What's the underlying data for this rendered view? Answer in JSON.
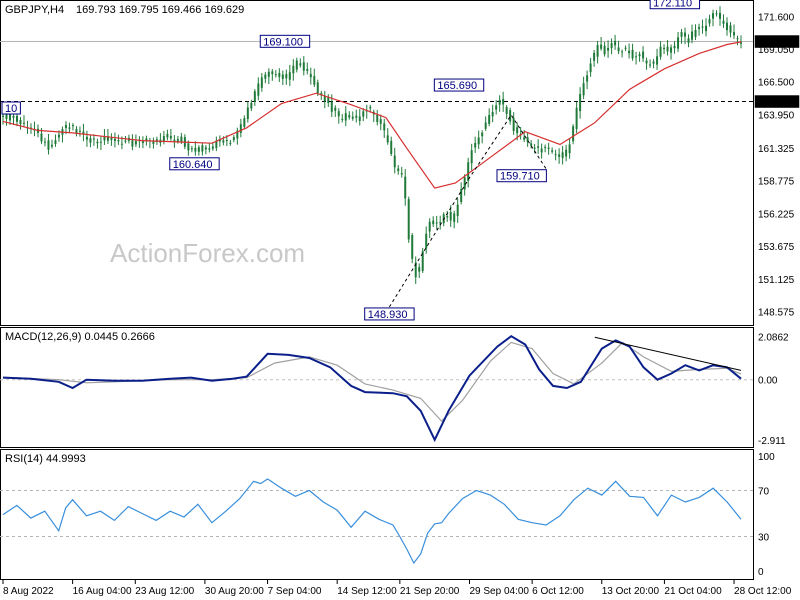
{
  "chart_data": [
    {
      "type": "candlestick",
      "panel": "price",
      "symbol_label": "GBPJPY,H4",
      "ohlc_label": "169.793 169.795 169.466 169.629",
      "ylim": [
        147.6,
        172.4
      ],
      "y_ticks": [
        "171.600",
        "169.050",
        "166.500",
        "163.950",
        "161.325",
        "158.775",
        "156.225",
        "153.675",
        "151.125",
        "148.575"
      ],
      "tick_values": [
        171.6,
        169.05,
        166.5,
        163.95,
        161.325,
        158.775,
        156.225,
        153.675,
        151.125,
        148.575
      ],
      "current_price": 169.629,
      "current_price_label": "169.629",
      "support_level": 164.95,
      "support_label": "164.950",
      "annotations": [
        {
          "text": "172.110",
          "x": 96.5,
          "y": 172.11
        },
        {
          "text": "169.100",
          "x": 40.5,
          "y": 169.1
        },
        {
          "text": "165.690",
          "x": 65.5,
          "y": 165.69
        },
        {
          "text": "160.640",
          "x": 27.5,
          "y": 160.64
        },
        {
          "text": "159.710",
          "x": 74.5,
          "y": 159.71
        },
        {
          "text": "148.930",
          "x": 55.5,
          "y": 148.93
        },
        {
          "text": "10",
          "x": 1,
          "y": 163.9
        }
      ],
      "x_ticks": [
        {
          "x": 0,
          "label": "8 Aug 2022"
        },
        {
          "x": 10,
          "label": "16 Aug 04:00"
        },
        {
          "x": 19,
          "label": "23 Aug 12:00"
        },
        {
          "x": 29,
          "label": "30 Aug 20:00"
        },
        {
          "x": 38,
          "label": "7 Sep 04:00"
        },
        {
          "x": 48,
          "label": "14 Sep 12:00"
        },
        {
          "x": 57,
          "label": "21 Sep 20:00"
        },
        {
          "x": 67,
          "label": "29 Sep 04:00"
        },
        {
          "x": 76,
          "label": "6 Oct 12:00"
        },
        {
          "x": 86,
          "label": "13 Oct 20:00"
        },
        {
          "x": 95,
          "label": "21 Oct 04:00"
        },
        {
          "x": 105,
          "label": "28 Oct 12:00"
        }
      ],
      "close_path": [
        [
          0,
          164.0
        ],
        [
          1,
          163.7
        ],
        [
          2,
          163.9
        ],
        [
          3,
          163.2
        ],
        [
          4,
          163.0
        ],
        [
          5,
          162.6
        ],
        [
          6,
          162.0
        ],
        [
          7,
          161.4
        ],
        [
          8,
          161.9
        ],
        [
          9,
          162.8
        ],
        [
          10,
          163.0
        ],
        [
          11,
          162.6
        ],
        [
          12,
          162.4
        ],
        [
          13,
          162.0
        ],
        [
          14,
          161.9
        ],
        [
          15,
          162.0
        ],
        [
          16,
          162.0
        ],
        [
          17,
          161.8
        ],
        [
          18,
          161.9
        ],
        [
          19,
          161.6
        ],
        [
          20,
          161.8
        ],
        [
          21,
          161.9
        ],
        [
          22,
          161.7
        ],
        [
          23,
          161.9
        ],
        [
          24,
          162.3
        ],
        [
          25,
          161.9
        ],
        [
          26,
          162.1
        ],
        [
          27,
          161.4
        ],
        [
          28,
          161.0
        ],
        [
          29,
          161.3
        ],
        [
          30,
          161.4
        ],
        [
          31,
          161.6
        ],
        [
          32,
          162.2
        ],
        [
          33,
          161.8
        ],
        [
          34,
          162.4
        ],
        [
          35,
          163.4
        ],
        [
          36,
          164.9
        ],
        [
          37,
          166.0
        ],
        [
          38,
          167.0
        ],
        [
          39,
          167.3
        ],
        [
          40,
          167.0
        ],
        [
          41,
          166.7
        ],
        [
          42,
          167.5
        ],
        [
          43,
          168.2
        ],
        [
          44,
          167.3
        ],
        [
          45,
          166.5
        ],
        [
          46,
          165.5
        ],
        [
          47,
          165.0
        ],
        [
          48,
          164.1
        ],
        [
          49,
          163.6
        ],
        [
          50,
          164.0
        ],
        [
          51,
          163.5
        ],
        [
          52,
          164.1
        ],
        [
          53,
          164.4
        ],
        [
          54,
          163.7
        ],
        [
          55,
          162.8
        ],
        [
          56,
          161.5
        ],
        [
          57,
          159.5
        ],
        [
          58,
          159.0
        ],
        [
          59,
          153.0
        ],
        [
          60,
          151.0
        ],
        [
          61,
          154.0
        ],
        [
          62,
          156.0
        ],
        [
          63,
          155.2
        ],
        [
          64,
          156.4
        ],
        [
          65,
          155.5
        ],
        [
          66,
          157.3
        ],
        [
          67,
          159.4
        ],
        [
          68,
          161.6
        ],
        [
          69,
          162.2
        ],
        [
          70,
          163.6
        ],
        [
          71,
          164.3
        ],
        [
          72,
          165.1
        ],
        [
          73,
          164.0
        ],
        [
          74,
          162.5
        ],
        [
          75,
          162.1
        ],
        [
          76,
          161.7
        ],
        [
          77,
          161.3
        ],
        [
          78,
          161.2
        ],
        [
          79,
          161.0
        ],
        [
          80,
          160.9
        ],
        [
          81,
          160.6
        ],
        [
          82,
          162.0
        ],
        [
          83,
          164.5
        ],
        [
          84,
          166.6
        ],
        [
          85,
          168.2
        ],
        [
          86,
          169.4
        ],
        [
          87,
          168.7
        ],
        [
          88,
          169.7
        ],
        [
          89,
          168.8
        ],
        [
          90,
          169.0
        ],
        [
          91,
          168.4
        ],
        [
          92,
          168.7
        ],
        [
          93,
          168.0
        ],
        [
          94,
          167.7
        ],
        [
          95,
          169.4
        ],
        [
          96,
          168.9
        ],
        [
          97,
          169.3
        ],
        [
          98,
          170.3
        ],
        [
          99,
          169.6
        ],
        [
          100,
          170.8
        ],
        [
          101,
          170.6
        ],
        [
          102,
          171.5
        ],
        [
          103,
          171.8
        ],
        [
          104,
          170.9
        ],
        [
          105,
          170.4
        ],
        [
          106,
          169.6
        ]
      ],
      "ma_path": [
        [
          0,
          163.4
        ],
        [
          5,
          162.7
        ],
        [
          10,
          162.5
        ],
        [
          15,
          162.2
        ],
        [
          20,
          161.9
        ],
        [
          25,
          161.8
        ],
        [
          30,
          161.7
        ],
        [
          35,
          162.9
        ],
        [
          40,
          164.8
        ],
        [
          45,
          165.6
        ],
        [
          50,
          164.7
        ],
        [
          55,
          163.7
        ],
        [
          58,
          161.3
        ],
        [
          62,
          158.2
        ],
        [
          65,
          158.6
        ],
        [
          70,
          160.6
        ],
        [
          75,
          162.6
        ],
        [
          80,
          161.6
        ],
        [
          85,
          163.3
        ],
        [
          90,
          165.9
        ],
        [
          95,
          167.5
        ],
        [
          100,
          168.7
        ],
        [
          104,
          169.4
        ],
        [
          106,
          169.6
        ]
      ],
      "dashed_path": [
        [
          55.5,
          148.93
        ],
        [
          67,
          159.0
        ],
        [
          73,
          163.9
        ],
        [
          78,
          159.7
        ]
      ]
    },
    {
      "type": "line",
      "panel": "macd",
      "indicator_label": "MACD(12,26,9) 0.0445 0.2666",
      "ylim": [
        -3.2,
        2.4
      ],
      "y_ticks": [
        {
          "label": "2.0862",
          "v": 2.0862
        },
        {
          "label": "0.00",
          "v": 0.0
        },
        {
          "label": "-2.911",
          "v": -2.911
        }
      ],
      "macd": [
        [
          0,
          0.1
        ],
        [
          4,
          0.05
        ],
        [
          8,
          -0.1
        ],
        [
          10,
          -0.4
        ],
        [
          12,
          0.0
        ],
        [
          16,
          -0.05
        ],
        [
          20,
          -0.05
        ],
        [
          24,
          0.05
        ],
        [
          27,
          0.1
        ],
        [
          30,
          -0.05
        ],
        [
          33,
          0.05
        ],
        [
          35,
          0.15
        ],
        [
          38,
          1.25
        ],
        [
          41,
          1.2
        ],
        [
          44,
          1.05
        ],
        [
          47,
          0.6
        ],
        [
          50,
          -0.3
        ],
        [
          52,
          -0.6
        ],
        [
          56,
          -0.65
        ],
        [
          58,
          -0.8
        ],
        [
          60,
          -1.5
        ],
        [
          62,
          -2.9
        ],
        [
          64,
          -1.5
        ],
        [
          67,
          0.2
        ],
        [
          71,
          1.6
        ],
        [
          73,
          2.1
        ],
        [
          75,
          1.7
        ],
        [
          77,
          0.5
        ],
        [
          79,
          -0.3
        ],
        [
          81,
          -0.4
        ],
        [
          83,
          -0.1
        ],
        [
          86,
          1.5
        ],
        [
          88,
          1.9
        ],
        [
          90,
          1.6
        ],
        [
          92,
          0.6
        ],
        [
          94,
          0.0
        ],
        [
          96,
          0.3
        ],
        [
          98,
          0.7
        ],
        [
          100,
          0.45
        ],
        [
          102,
          0.7
        ],
        [
          104,
          0.6
        ],
        [
          106,
          0.05
        ]
      ],
      "signal": [
        [
          0,
          0.12
        ],
        [
          8,
          0.0
        ],
        [
          12,
          -0.15
        ],
        [
          16,
          -0.1
        ],
        [
          24,
          0.0
        ],
        [
          30,
          0.0
        ],
        [
          35,
          0.1
        ],
        [
          39,
          0.8
        ],
        [
          44,
          1.1
        ],
        [
          48,
          0.7
        ],
        [
          52,
          -0.2
        ],
        [
          56,
          -0.5
        ],
        [
          60,
          -0.9
        ],
        [
          63,
          -2.0
        ],
        [
          66,
          -1.0
        ],
        [
          70,
          0.9
        ],
        [
          73,
          1.8
        ],
        [
          76,
          1.5
        ],
        [
          79,
          0.3
        ],
        [
          82,
          -0.2
        ],
        [
          86,
          0.8
        ],
        [
          89,
          1.8
        ],
        [
          92,
          1.1
        ],
        [
          96,
          0.4
        ],
        [
          100,
          0.5
        ],
        [
          104,
          0.55
        ],
        [
          106,
          0.27
        ]
      ],
      "trendline": [
        [
          85,
          2.05
        ],
        [
          106,
          0.45
        ]
      ]
    },
    {
      "type": "line",
      "panel": "rsi",
      "indicator_label": "RSI(14) 44.9993",
      "ylim": [
        0,
        100
      ],
      "y_ticks": [
        {
          "label": "100",
          "v": 100
        },
        {
          "label": "70",
          "v": 70
        },
        {
          "label": "30",
          "v": 30
        },
        {
          "label": "0",
          "v": 0
        }
      ],
      "levels": [
        70,
        30
      ],
      "rsi": [
        [
          0,
          49
        ],
        [
          2,
          57
        ],
        [
          4,
          46
        ],
        [
          6,
          52
        ],
        [
          8,
          35
        ],
        [
          9,
          55
        ],
        [
          10,
          62
        ],
        [
          12,
          48
        ],
        [
          14,
          52
        ],
        [
          16,
          44
        ],
        [
          18,
          56
        ],
        [
          20,
          50
        ],
        [
          22,
          44
        ],
        [
          24,
          52
        ],
        [
          26,
          47
        ],
        [
          28,
          58
        ],
        [
          30,
          42
        ],
        [
          32,
          52
        ],
        [
          34,
          63
        ],
        [
          36,
          78
        ],
        [
          37,
          76
        ],
        [
          38,
          80
        ],
        [
          40,
          72
        ],
        [
          42,
          65
        ],
        [
          44,
          70
        ],
        [
          46,
          60
        ],
        [
          48,
          53
        ],
        [
          50,
          38
        ],
        [
          52,
          52
        ],
        [
          54,
          45
        ],
        [
          56,
          40
        ],
        [
          57,
          30
        ],
        [
          58,
          19
        ],
        [
          59,
          7
        ],
        [
          60,
          15
        ],
        [
          61,
          33
        ],
        [
          62,
          41
        ],
        [
          63,
          42
        ],
        [
          64,
          50
        ],
        [
          66,
          63
        ],
        [
          68,
          70
        ],
        [
          70,
          66
        ],
        [
          72,
          58
        ],
        [
          74,
          45
        ],
        [
          76,
          42
        ],
        [
          78,
          40
        ],
        [
          80,
          48
        ],
        [
          82,
          62
        ],
        [
          84,
          72
        ],
        [
          86,
          66
        ],
        [
          88,
          78
        ],
        [
          90,
          65
        ],
        [
          92,
          64
        ],
        [
          94,
          48
        ],
        [
          96,
          66
        ],
        [
          98,
          60
        ],
        [
          100,
          64
        ],
        [
          102,
          72
        ],
        [
          104,
          60
        ],
        [
          106,
          45
        ]
      ]
    }
  ],
  "watermark": "ActionForex.com",
  "colors": {
    "background": "#ffffff",
    "candle": "#1f7a3a",
    "ma": "#d62f2f",
    "macd": "#0b1f8a",
    "signal": "#a0a0a0",
    "rsi": "#3a8fdc",
    "annotation": "#000080",
    "dashed": "#000000",
    "panel_border": "#000000"
  }
}
